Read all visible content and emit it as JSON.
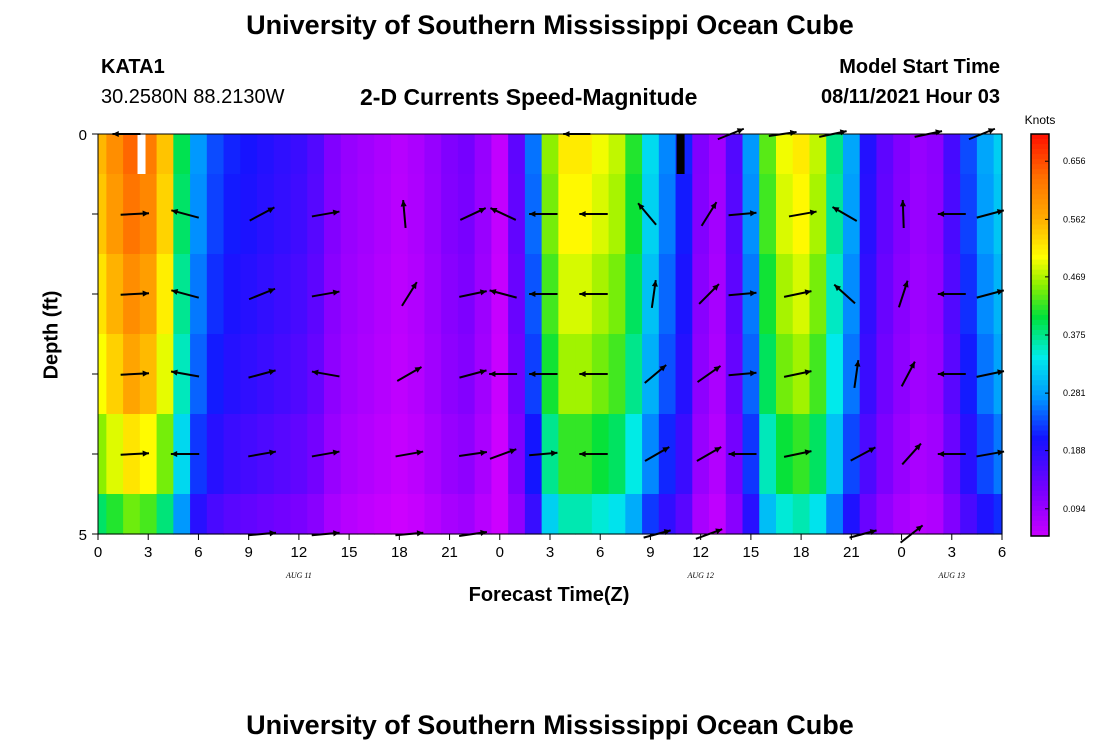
{
  "header": {
    "title": "University of Southern Mississippi Ocean Cube",
    "station": "KATA1",
    "coordinates": "30.2580N  88.2130W",
    "subtitle": "2-D Currents Speed-Magnitude",
    "model_start_label": "Model Start Time",
    "model_start_value": "08/11/2021 Hour 03"
  },
  "footer": {
    "title": "University of Southern Mississippi Ocean Cube"
  },
  "chart_data": {
    "type": "heatmap",
    "title": "2-D Currents Speed-Magnitude",
    "xlabel": "Forecast Time(Z)",
    "ylabel": "Depth (ft)",
    "xlim": [
      0,
      54
    ],
    "ylim": [
      0,
      5
    ],
    "y_tick_labels": [
      "0",
      "",
      "",
      "",
      "",
      "5"
    ],
    "x_tick_labels": [
      "0",
      "3",
      "6",
      "9",
      "12",
      "15",
      "18",
      "21",
      "0",
      "3",
      "6",
      "9",
      "12",
      "15",
      "18",
      "21",
      "0",
      "3",
      "6"
    ],
    "date_labels": [
      {
        "hour": 12,
        "text": "AUG 11"
      },
      {
        "hour": 36,
        "text": "AUG 12"
      },
      {
        "hour": 51,
        "text": "AUG 13"
      }
    ],
    "colorbar": {
      "label": "Knots",
      "vmin": 0.05,
      "vmax": 0.7,
      "tick_values": [
        0.094,
        0.188,
        0.281,
        0.375,
        0.469,
        0.562,
        0.656
      ],
      "tick_labels": [
        "0.094",
        "0.188",
        "0.281",
        "0.375",
        "0.469",
        "0.562",
        "0.656"
      ]
    },
    "depth_levels": [
      0,
      1,
      2,
      3,
      4,
      5
    ],
    "hours": [
      0,
      1,
      2,
      3,
      4,
      5,
      6,
      7,
      8,
      9,
      10,
      11,
      12,
      13,
      14,
      15,
      16,
      17,
      18,
      19,
      20,
      21,
      22,
      23,
      24,
      25,
      26,
      27,
      28,
      29,
      30,
      31,
      32,
      33,
      34,
      35,
      36,
      37,
      38,
      39,
      40,
      41,
      42,
      43,
      44,
      45,
      46,
      47,
      48,
      49,
      50,
      51,
      52,
      53,
      54
    ],
    "speed_profile_knots": [
      0.56,
      0.6,
      0.64,
      0.62,
      0.55,
      0.4,
      0.28,
      0.24,
      0.22,
      0.21,
      0.2,
      0.19,
      0.18,
      0.16,
      0.12,
      0.1,
      0.09,
      0.08,
      0.07,
      0.08,
      0.1,
      0.12,
      0.13,
      0.1,
      0.06,
      0.15,
      0.26,
      0.46,
      0.52,
      0.52,
      0.5,
      0.48,
      0.42,
      0.33,
      0.27,
      0.22,
      0.12,
      0.09,
      0.16,
      0.28,
      0.44,
      0.5,
      0.52,
      0.48,
      0.38,
      0.29,
      0.2,
      0.15,
      0.12,
      0.1,
      0.11,
      0.17,
      0.24,
      0.29,
      0.32
    ],
    "depth_factor": [
      1.0,
      0.98,
      0.94,
      0.9,
      0.82,
      0.7
    ],
    "missing_cells": [
      {
        "hour": 2.6,
        "depth": 0,
        "color": "#ffffff"
      },
      {
        "hour": 34.8,
        "depth": 0,
        "color": "#000000"
      }
    ],
    "vectors": [
      {
        "depth": 0,
        "hour": 1.7,
        "angle": 180,
        "speed": 0.5
      },
      {
        "depth": 0,
        "hour": 28.6,
        "angle": 180,
        "speed": 0.4
      },
      {
        "depth": 0,
        "hour": 37.8,
        "angle": 22,
        "speed": 0.5
      },
      {
        "depth": 0,
        "hour": 40.9,
        "angle": 8,
        "speed": 0.5
      },
      {
        "depth": 0,
        "hour": 43.9,
        "angle": 12,
        "speed": 0.5
      },
      {
        "depth": 0,
        "hour": 49.6,
        "angle": 12,
        "speed": 0.5
      },
      {
        "depth": 0,
        "hour": 52.8,
        "angle": 22,
        "speed": 0.5
      },
      {
        "depth": 1,
        "hour": 2.2,
        "angle": 3,
        "speed": 0.55
      },
      {
        "depth": 1,
        "hour": 5.2,
        "angle": 165,
        "speed": 0.55
      },
      {
        "depth": 1,
        "hour": 9.8,
        "angle": 28,
        "speed": 0.5
      },
      {
        "depth": 1,
        "hour": 13.6,
        "angle": 10,
        "speed": 0.5
      },
      {
        "depth": 1,
        "hour": 18.3,
        "angle": 95,
        "speed": 0.5
      },
      {
        "depth": 1,
        "hour": 22.4,
        "angle": 25,
        "speed": 0.5
      },
      {
        "depth": 1,
        "hour": 24.2,
        "angle": 155,
        "speed": 0.5
      },
      {
        "depth": 1,
        "hour": 26.6,
        "angle": 180,
        "speed": 0.55
      },
      {
        "depth": 1,
        "hour": 29.6,
        "angle": 180,
        "speed": 0.55
      },
      {
        "depth": 1,
        "hour": 32.8,
        "angle": 130,
        "speed": 0.5
      },
      {
        "depth": 1,
        "hour": 36.5,
        "angle": 58,
        "speed": 0.5
      },
      {
        "depth": 1,
        "hour": 38.5,
        "angle": 5,
        "speed": 0.5
      },
      {
        "depth": 1,
        "hour": 42.1,
        "angle": 10,
        "speed": 0.5
      },
      {
        "depth": 1,
        "hour": 44.6,
        "angle": 150,
        "speed": 0.5
      },
      {
        "depth": 1,
        "hour": 48.1,
        "angle": 92,
        "speed": 0.5
      },
      {
        "depth": 1,
        "hour": 51.0,
        "angle": 180,
        "speed": 0.5
      },
      {
        "depth": 1,
        "hour": 53.3,
        "angle": 15,
        "speed": 0.5
      },
      {
        "depth": 2,
        "hour": 2.2,
        "angle": 3,
        "speed": 0.55
      },
      {
        "depth": 2,
        "hour": 5.2,
        "angle": 165,
        "speed": 0.55
      },
      {
        "depth": 2,
        "hour": 9.8,
        "angle": 22,
        "speed": 0.5
      },
      {
        "depth": 2,
        "hour": 13.6,
        "angle": 10,
        "speed": 0.5
      },
      {
        "depth": 2,
        "hour": 18.6,
        "angle": 58,
        "speed": 0.5
      },
      {
        "depth": 2,
        "hour": 22.4,
        "angle": 12,
        "speed": 0.5
      },
      {
        "depth": 2,
        "hour": 24.2,
        "angle": 165,
        "speed": 0.5
      },
      {
        "depth": 2,
        "hour": 26.6,
        "angle": 180,
        "speed": 0.55
      },
      {
        "depth": 2,
        "hour": 29.6,
        "angle": 180,
        "speed": 0.55
      },
      {
        "depth": 2,
        "hour": 33.2,
        "angle": 82,
        "speed": 0.5
      },
      {
        "depth": 2,
        "hour": 36.5,
        "angle": 45,
        "speed": 0.5
      },
      {
        "depth": 2,
        "hour": 38.5,
        "angle": 5,
        "speed": 0.5
      },
      {
        "depth": 2,
        "hour": 41.8,
        "angle": 12,
        "speed": 0.5
      },
      {
        "depth": 2,
        "hour": 44.6,
        "angle": 138,
        "speed": 0.5
      },
      {
        "depth": 2,
        "hour": 48.1,
        "angle": 72,
        "speed": 0.5
      },
      {
        "depth": 2,
        "hour": 51.0,
        "angle": 180,
        "speed": 0.5
      },
      {
        "depth": 2,
        "hour": 53.3,
        "angle": 15,
        "speed": 0.5
      },
      {
        "depth": 3,
        "hour": 2.2,
        "angle": 3,
        "speed": 0.55
      },
      {
        "depth": 3,
        "hour": 5.2,
        "angle": 170,
        "speed": 0.55
      },
      {
        "depth": 3,
        "hour": 9.8,
        "angle": 15,
        "speed": 0.5
      },
      {
        "depth": 3,
        "hour": 13.6,
        "angle": 170,
        "speed": 0.5
      },
      {
        "depth": 3,
        "hour": 18.6,
        "angle": 30,
        "speed": 0.5
      },
      {
        "depth": 3,
        "hour": 22.4,
        "angle": 15,
        "speed": 0.5
      },
      {
        "depth": 3,
        "hour": 24.2,
        "angle": 180,
        "speed": 0.5
      },
      {
        "depth": 3,
        "hour": 26.6,
        "angle": 180,
        "speed": 0.55
      },
      {
        "depth": 3,
        "hour": 29.6,
        "angle": 180,
        "speed": 0.55
      },
      {
        "depth": 3,
        "hour": 33.3,
        "angle": 40,
        "speed": 0.5
      },
      {
        "depth": 3,
        "hour": 36.5,
        "angle": 35,
        "speed": 0.5
      },
      {
        "depth": 3,
        "hour": 38.5,
        "angle": 5,
        "speed": 0.5
      },
      {
        "depth": 3,
        "hour": 41.8,
        "angle": 12,
        "speed": 0.5
      },
      {
        "depth": 3,
        "hour": 45.3,
        "angle": 82,
        "speed": 0.5
      },
      {
        "depth": 3,
        "hour": 48.4,
        "angle": 62,
        "speed": 0.5
      },
      {
        "depth": 3,
        "hour": 51.0,
        "angle": 180,
        "speed": 0.5
      },
      {
        "depth": 3,
        "hour": 53.3,
        "angle": 12,
        "speed": 0.5
      },
      {
        "depth": 4,
        "hour": 2.2,
        "angle": 3,
        "speed": 0.55
      },
      {
        "depth": 4,
        "hour": 5.2,
        "angle": 180,
        "speed": 0.55
      },
      {
        "depth": 4,
        "hour": 9.8,
        "angle": 10,
        "speed": 0.5
      },
      {
        "depth": 4,
        "hour": 13.6,
        "angle": 10,
        "speed": 0.5
      },
      {
        "depth": 4,
        "hour": 18.6,
        "angle": 10,
        "speed": 0.5
      },
      {
        "depth": 4,
        "hour": 22.4,
        "angle": 8,
        "speed": 0.5
      },
      {
        "depth": 4,
        "hour": 24.2,
        "angle": 20,
        "speed": 0.5
      },
      {
        "depth": 4,
        "hour": 26.6,
        "angle": 5,
        "speed": 0.55
      },
      {
        "depth": 4,
        "hour": 29.6,
        "angle": 180,
        "speed": 0.55
      },
      {
        "depth": 4,
        "hour": 33.4,
        "angle": 30,
        "speed": 0.5
      },
      {
        "depth": 4,
        "hour": 36.5,
        "angle": 30,
        "speed": 0.5
      },
      {
        "depth": 4,
        "hour": 38.5,
        "angle": 180,
        "speed": 0.5
      },
      {
        "depth": 4,
        "hour": 41.8,
        "angle": 12,
        "speed": 0.5
      },
      {
        "depth": 4,
        "hour": 45.7,
        "angle": 28,
        "speed": 0.5
      },
      {
        "depth": 4,
        "hour": 48.6,
        "angle": 48,
        "speed": 0.5
      },
      {
        "depth": 4,
        "hour": 51.0,
        "angle": 180,
        "speed": 0.5
      },
      {
        "depth": 4,
        "hour": 53.3,
        "angle": 10,
        "speed": 0.5
      },
      {
        "depth": 5,
        "hour": 9.8,
        "angle": 5,
        "speed": 0.5
      },
      {
        "depth": 5,
        "hour": 13.6,
        "angle": 5,
        "speed": 0.5
      },
      {
        "depth": 5,
        "hour": 18.6,
        "angle": 5,
        "speed": 0.5
      },
      {
        "depth": 5,
        "hour": 22.4,
        "angle": 8,
        "speed": 0.5
      },
      {
        "depth": 5,
        "hour": 33.4,
        "angle": 15,
        "speed": 0.5
      },
      {
        "depth": 5,
        "hour": 36.5,
        "angle": 20,
        "speed": 0.5
      },
      {
        "depth": 5,
        "hour": 45.7,
        "angle": 15,
        "speed": 0.5
      },
      {
        "depth": 5,
        "hour": 48.6,
        "angle": 38,
        "speed": 0.5
      }
    ]
  }
}
